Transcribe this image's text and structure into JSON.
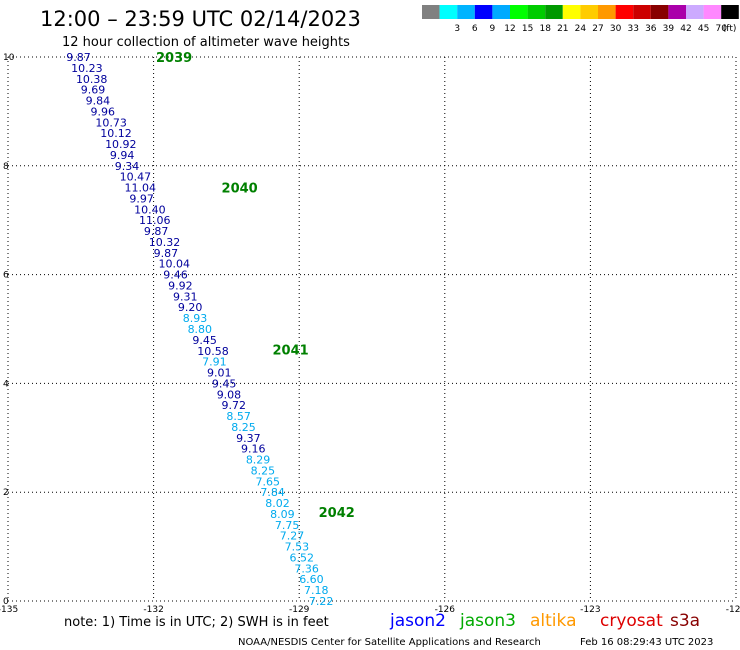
{
  "header": {
    "title": "12:00 – 23:59 UTC 02/14/2023",
    "subtitle": "12 hour collection of altimeter wave heights"
  },
  "color_scale": {
    "unit": "(ft)",
    "bins": [
      {
        "color": "#808080",
        "label": ""
      },
      {
        "color": "#00ffff",
        "label": "3"
      },
      {
        "color": "#00b4ff",
        "label": "6"
      },
      {
        "color": "#0000ff",
        "label": "9"
      },
      {
        "color": "#00aaff",
        "label": "12"
      },
      {
        "color": "#00ff00",
        "label": "15"
      },
      {
        "color": "#00cc00",
        "label": "18"
      },
      {
        "color": "#009900",
        "label": "21"
      },
      {
        "color": "#ffff00",
        "label": "24"
      },
      {
        "color": "#ffcc00",
        "label": "27"
      },
      {
        "color": "#ff9900",
        "label": "30"
      },
      {
        "color": "#ff0000",
        "label": "33"
      },
      {
        "color": "#cc0000",
        "label": "36"
      },
      {
        "color": "#880000",
        "label": "39"
      },
      {
        "color": "#aa00aa",
        "label": "42"
      },
      {
        "color": "#ccaaff",
        "label": "45"
      },
      {
        "color": "#ff88ff",
        "label": "70"
      },
      {
        "color": "#000000",
        "label": ""
      }
    ]
  },
  "map": {
    "lon_range": [
      -135,
      -120
    ],
    "lat_range": [
      0,
      10
    ],
    "x_ticks": [
      "-135",
      "-132",
      "-129",
      "-126",
      "-123",
      "-120"
    ],
    "y_ticks": [
      "0",
      "2",
      "4",
      "6",
      "8",
      "10"
    ],
    "grid": "dotted",
    "pass_color": "#008000",
    "colors": {
      "dark": "#00009c",
      "light": "#00aaee"
    },
    "passes": [
      {
        "label": "2039",
        "lon": -131.95,
        "lat": 10.0
      },
      {
        "label": "2040",
        "lon": -130.6,
        "lat": 7.6
      },
      {
        "label": "2041",
        "lon": -129.55,
        "lat": 4.62
      },
      {
        "label": "2042",
        "lon": -128.6,
        "lat": 1.64
      }
    ],
    "observations": [
      {
        "v": "9.87",
        "lon": -133.8,
        "lat": 10.0,
        "c": "dark"
      },
      {
        "v": "10.23",
        "lon": -133.7,
        "lat": 9.8,
        "c": "dark"
      },
      {
        "v": "10.38",
        "lon": -133.6,
        "lat": 9.6,
        "c": "dark"
      },
      {
        "v": "9.69",
        "lon": -133.5,
        "lat": 9.4,
        "c": "dark"
      },
      {
        "v": "9.84",
        "lon": -133.4,
        "lat": 9.2,
        "c": "dark"
      },
      {
        "v": "9.96",
        "lon": -133.3,
        "lat": 9.0,
        "c": "dark"
      },
      {
        "v": "10.73",
        "lon": -133.2,
        "lat": 8.8,
        "c": "dark"
      },
      {
        "v": "10.12",
        "lon": -133.1,
        "lat": 8.6,
        "c": "dark"
      },
      {
        "v": "10.92",
        "lon": -133.0,
        "lat": 8.4,
        "c": "dark"
      },
      {
        "v": "9.94",
        "lon": -132.9,
        "lat": 8.2,
        "c": "dark"
      },
      {
        "v": "9.34",
        "lon": -132.8,
        "lat": 8.0,
        "c": "dark"
      },
      {
        "v": "10.47",
        "lon": -132.7,
        "lat": 7.8,
        "c": "dark"
      },
      {
        "v": "11.04",
        "lon": -132.6,
        "lat": 7.6,
        "c": "dark"
      },
      {
        "v": "9.97",
        "lon": -132.5,
        "lat": 7.4,
        "c": "dark"
      },
      {
        "v": "10.40",
        "lon": -132.4,
        "lat": 7.2,
        "c": "dark"
      },
      {
        "v": "11.06",
        "lon": -132.3,
        "lat": 7.0,
        "c": "dark"
      },
      {
        "v": "9.87",
        "lon": -132.2,
        "lat": 6.8,
        "c": "dark"
      },
      {
        "v": "10.32",
        "lon": -132.1,
        "lat": 6.6,
        "c": "dark"
      },
      {
        "v": "9.87",
        "lon": -132.0,
        "lat": 6.4,
        "c": "dark"
      },
      {
        "v": "10.04",
        "lon": -131.9,
        "lat": 6.2,
        "c": "dark"
      },
      {
        "v": "9.46",
        "lon": -131.8,
        "lat": 6.0,
        "c": "dark"
      },
      {
        "v": "9.92",
        "lon": -131.7,
        "lat": 5.8,
        "c": "dark"
      },
      {
        "v": "9.31",
        "lon": -131.6,
        "lat": 5.6,
        "c": "dark"
      },
      {
        "v": "9.20",
        "lon": -131.5,
        "lat": 5.4,
        "c": "dark"
      },
      {
        "v": "8.93",
        "lon": -131.4,
        "lat": 5.2,
        "c": "light"
      },
      {
        "v": "8.80",
        "lon": -131.3,
        "lat": 5.0,
        "c": "light"
      },
      {
        "v": "9.45",
        "lon": -131.2,
        "lat": 4.8,
        "c": "dark"
      },
      {
        "v": "10.58",
        "lon": -131.1,
        "lat": 4.6,
        "c": "dark"
      },
      {
        "v": "7.91",
        "lon": -131.0,
        "lat": 4.4,
        "c": "light"
      },
      {
        "v": "9.01",
        "lon": -130.9,
        "lat": 4.2,
        "c": "dark"
      },
      {
        "v": "9.45",
        "lon": -130.8,
        "lat": 4.0,
        "c": "dark"
      },
      {
        "v": "9.08",
        "lon": -130.7,
        "lat": 3.8,
        "c": "dark"
      },
      {
        "v": "9.72",
        "lon": -130.6,
        "lat": 3.6,
        "c": "dark"
      },
      {
        "v": "8.57",
        "lon": -130.5,
        "lat": 3.4,
        "c": "light"
      },
      {
        "v": "8.25",
        "lon": -130.4,
        "lat": 3.2,
        "c": "light"
      },
      {
        "v": "9.37",
        "lon": -130.3,
        "lat": 3.0,
        "c": "dark"
      },
      {
        "v": "9.16",
        "lon": -130.2,
        "lat": 2.8,
        "c": "dark"
      },
      {
        "v": "8.29",
        "lon": -130.1,
        "lat": 2.6,
        "c": "light"
      },
      {
        "v": "8.25",
        "lon": -130.0,
        "lat": 2.4,
        "c": "light"
      },
      {
        "v": "7.65",
        "lon": -129.9,
        "lat": 2.2,
        "c": "light"
      },
      {
        "v": "7.84",
        "lon": -129.8,
        "lat": 2.0,
        "c": "light"
      },
      {
        "v": "8.02",
        "lon": -129.7,
        "lat": 1.8,
        "c": "light"
      },
      {
        "v": "8.09",
        "lon": -129.6,
        "lat": 1.6,
        "c": "light"
      },
      {
        "v": "7.75",
        "lon": -129.5,
        "lat": 1.4,
        "c": "light"
      },
      {
        "v": "7.27",
        "lon": -129.4,
        "lat": 1.2,
        "c": "light"
      },
      {
        "v": "7.53",
        "lon": -129.3,
        "lat": 1.0,
        "c": "light"
      },
      {
        "v": "6.52",
        "lon": -129.2,
        "lat": 0.8,
        "c": "light"
      },
      {
        "v": "7.36",
        "lon": -129.1,
        "lat": 0.6,
        "c": "light"
      },
      {
        "v": "6.60",
        "lon": -129.0,
        "lat": 0.4,
        "c": "light"
      },
      {
        "v": "7.18",
        "lon": -128.9,
        "lat": 0.2,
        "c": "light"
      },
      {
        "v": "7.22",
        "lon": -128.8,
        "lat": 0.0,
        "c": "light"
      }
    ]
  },
  "footer": {
    "note": "note:  1) Time is in UTC; 2) SWH is in feet",
    "satellites": [
      {
        "name": "jason2",
        "color": "#0000ff"
      },
      {
        "name": "jason3",
        "color": "#00aa00"
      },
      {
        "name": "altika",
        "color": "#ff9900"
      },
      {
        "name": "cryosat",
        "color": "#dd0000"
      },
      {
        "name": "s3a",
        "color": "#880000"
      }
    ],
    "credit": "NOAA/NESDIS Center for Satellite Applications and Research",
    "timestamp": "Feb 16 08:29:43 UTC 2023"
  }
}
